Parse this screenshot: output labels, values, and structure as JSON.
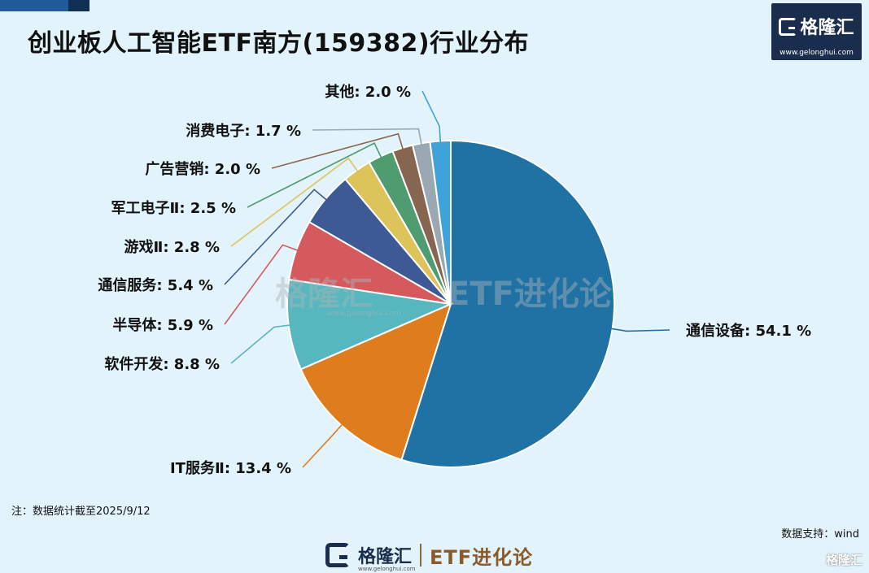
{
  "header": {
    "title": "创业板人工智能ETF南方(159382)行业分布"
  },
  "logo": {
    "brand": "格隆汇",
    "url": "www.gelonghui.com"
  },
  "watermark": {
    "brand": "格隆汇",
    "url": "www.gelonghui.com",
    "etf": "ETF进化论"
  },
  "footer": {
    "note": "注：数据统计截至2025/9/12",
    "source": "数据支持：wind",
    "brand": "格隆汇",
    "url": "www.gelonghui.com",
    "etf": "ETF进化论",
    "corner_mark": "格隆汇"
  },
  "chart_data": {
    "type": "pie",
    "title": "创业板人工智能ETF南方(159382)行业分布",
    "unit": "%",
    "start": "12-o'clock",
    "direction": "clockwise",
    "slices": [
      {
        "label": "通信设备",
        "value": 54.1,
        "display": "通信设备: 54.1 %",
        "color": "#2172a4"
      },
      {
        "label": "IT服务Ⅱ",
        "value": 13.4,
        "display": "IT服务Ⅱ: 13.4 %",
        "color": "#df7c1e"
      },
      {
        "label": "软件开发",
        "value": 8.8,
        "display": "软件开发: 8.8 %",
        "color": "#56b7be"
      },
      {
        "label": "半导体",
        "value": 5.9,
        "display": "半导体: 5.9 %",
        "color": "#d55a5e"
      },
      {
        "label": "通信服务",
        "value": 5.4,
        "display": "通信服务: 5.4 %",
        "color": "#3e5a94"
      },
      {
        "label": "游戏Ⅱ",
        "value": 2.8,
        "display": "游戏Ⅱ: 2.8 %",
        "color": "#dcc35a"
      },
      {
        "label": "军工电子Ⅱ",
        "value": 2.5,
        "display": "军工电子Ⅱ: 2.5 %",
        "color": "#4e9c70"
      },
      {
        "label": "广告营销",
        "value": 2.0,
        "display": "广告营销: 2.0 %",
        "color": "#866650"
      },
      {
        "label": "消费电子",
        "value": 1.7,
        "display": "消费电子: 1.7 %",
        "color": "#9aa8b2"
      },
      {
        "label": "其他",
        "value": 2.0,
        "display": "其他: 2.0 %",
        "color": "#3fa3d9"
      }
    ]
  }
}
